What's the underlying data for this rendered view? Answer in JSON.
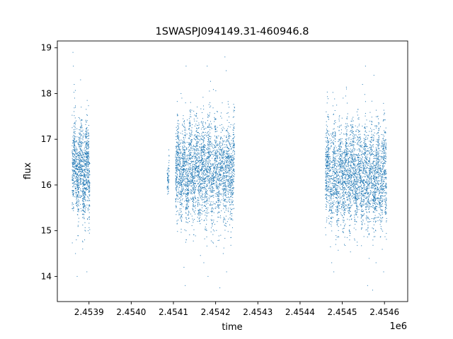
{
  "chart_data": {
    "type": "scatter",
    "title": "1SWASPJ094149.31-460946.8",
    "xlabel": "time",
    "ylabel": "flux",
    "x_offset_label": "1e6",
    "xlim": [
      2453825,
      2454655
    ],
    "ylim": [
      13.45,
      19.15
    ],
    "xticks": [
      2453900,
      2454000,
      2454100,
      2454200,
      2454300,
      2454400,
      2454500,
      2454600
    ],
    "xtick_labels": [
      "2.4539",
      "2.4540",
      "2.4541",
      "2.4542",
      "2.4543",
      "2.4544",
      "2.4545",
      "2.4546"
    ],
    "yticks": [
      14,
      15,
      16,
      17,
      18,
      19
    ],
    "ytick_labels": [
      "14",
      "15",
      "16",
      "17",
      "18",
      "19"
    ],
    "grid": false,
    "marker_color": "#1f77b4",
    "series": [
      {
        "segments": [
          {
            "x_start": 2453860,
            "x_end": 2453902,
            "center": 16.3,
            "spread": 0.45,
            "n": 1200
          },
          {
            "x_start": 2454085,
            "x_end": 2454090,
            "center": 16.1,
            "spread": 0.15,
            "n": 60
          },
          {
            "x_start": 2454105,
            "x_end": 2454245,
            "center": 16.3,
            "spread": 0.5,
            "n": 3200
          },
          {
            "x_start": 2454460,
            "x_end": 2454605,
            "center": 16.2,
            "spread": 0.5,
            "n": 3400
          }
        ],
        "outlier_points": [
          [
            2453862,
            18.9
          ],
          [
            2453863,
            18.6
          ],
          [
            2453865,
            18.2
          ],
          [
            2453866,
            17.9
          ],
          [
            2453868,
            14.5
          ],
          [
            2453870,
            14.8
          ],
          [
            2453872,
            14.0
          ],
          [
            2453880,
            18.3
          ],
          [
            2453895,
            14.1
          ],
          [
            2453898,
            15.0
          ],
          [
            2453885,
            14.6
          ],
          [
            2454118,
            18.0
          ],
          [
            2454120,
            17.9
          ],
          [
            2454125,
            14.2
          ],
          [
            2454128,
            13.8
          ],
          [
            2454130,
            18.6
          ],
          [
            2454150,
            17.4
          ],
          [
            2454172,
            14.3
          ],
          [
            2454180,
            18.6
          ],
          [
            2454182,
            14.0
          ],
          [
            2454210,
            13.75
          ],
          [
            2454212,
            14.9
          ],
          [
            2454222,
            18.8
          ],
          [
            2454225,
            18.5
          ],
          [
            2454226,
            14.1
          ],
          [
            2454228,
            15.2
          ],
          [
            2454218,
            14.5
          ],
          [
            2454462,
            17.6
          ],
          [
            2454475,
            14.3
          ],
          [
            2454480,
            14.1
          ],
          [
            2454502,
            17.9
          ],
          [
            2454505,
            14.7
          ],
          [
            2454510,
            18.1
          ],
          [
            2454520,
            17.3
          ],
          [
            2454535,
            17.6
          ],
          [
            2454548,
            18.2
          ],
          [
            2454555,
            18.6
          ],
          [
            2454560,
            13.8
          ],
          [
            2454572,
            13.7
          ],
          [
            2454575,
            18.4
          ],
          [
            2454580,
            14.3
          ],
          [
            2454598,
            14.1
          ],
          [
            2454602,
            15.5
          ]
        ]
      }
    ]
  }
}
